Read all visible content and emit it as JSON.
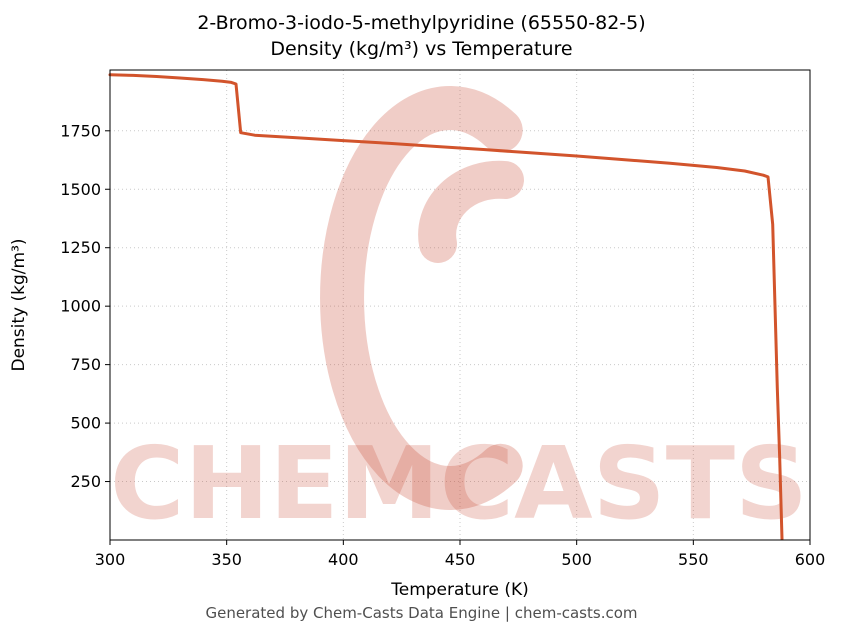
{
  "title_line1": "2-Bromo-3-iodo-5-methylpyridine (65550-82-5)",
  "title_line2": "Density (kg/m³) vs Temperature",
  "footer": "Generated by Chem-Casts Data Engine | chem-casts.com",
  "watermark": {
    "text": "CHEMCASTS",
    "color": "#c84b37",
    "text_opacity": 0.24,
    "logo_opacity": 0.28
  },
  "chart_data": {
    "type": "line",
    "title": "2-Bromo-3-iodo-5-methylpyridine (65550-82-5) — Density (kg/m³) vs Temperature",
    "xlabel": "Temperature (K)",
    "ylabel": "Density (kg/m³)",
    "xlim": [
      300,
      600
    ],
    "ylim": [
      0,
      2010
    ],
    "x_ticks": [
      300,
      350,
      400,
      450,
      500,
      550,
      600
    ],
    "y_ticks": [
      250,
      500,
      750,
      1000,
      1250,
      1500,
      1750
    ],
    "grid": true,
    "legend": "none",
    "line_color": "#d2542c",
    "line_width": 3,
    "series": [
      {
        "name": "Density",
        "points": [
          [
            300,
            1990
          ],
          [
            310,
            1987
          ],
          [
            320,
            1982
          ],
          [
            330,
            1976
          ],
          [
            340,
            1969
          ],
          [
            348,
            1962
          ],
          [
            352,
            1957
          ],
          [
            354,
            1950
          ],
          [
            356,
            1742
          ],
          [
            362,
            1731
          ],
          [
            380,
            1720
          ],
          [
            400,
            1708
          ],
          [
            420,
            1696
          ],
          [
            440,
            1683
          ],
          [
            460,
            1670
          ],
          [
            480,
            1656
          ],
          [
            500,
            1642
          ],
          [
            520,
            1627
          ],
          [
            540,
            1611
          ],
          [
            560,
            1593
          ],
          [
            572,
            1578
          ],
          [
            580,
            1560
          ],
          [
            582,
            1553
          ],
          [
            584,
            1350
          ],
          [
            585,
            1000
          ],
          [
            586,
            650
          ],
          [
            587,
            350
          ],
          [
            588,
            5
          ]
        ]
      }
    ]
  }
}
